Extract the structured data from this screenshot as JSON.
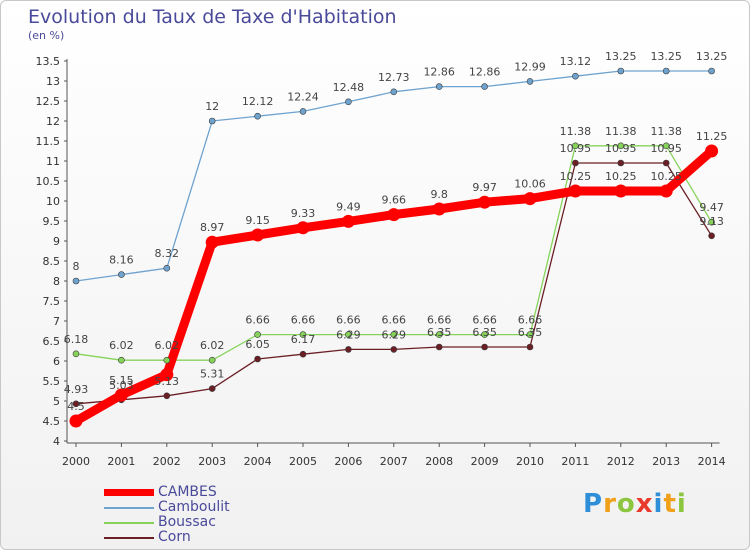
{
  "header": {
    "title": "Evolution du Taux de Taxe d'Habitation",
    "subtitle": "(en %)"
  },
  "logo": {
    "text": "Proxiti"
  },
  "chart_data": {
    "type": "line",
    "title": "Evolution du Taux de Taxe d'Habitation",
    "ylabel": "(en %)",
    "xlabel": "",
    "x": [
      "2000",
      "2001",
      "2002",
      "2003",
      "2004",
      "2005",
      "2006",
      "2007",
      "2008",
      "2009",
      "2010",
      "2011",
      "2012",
      "2013",
      "2014"
    ],
    "ylim": [
      4,
      13.5
    ],
    "yticks": [
      "4",
      "4.5",
      "5",
      "5.5",
      "6",
      "6.5",
      "7",
      "7.5",
      "8",
      "8.5",
      "9",
      "9.5",
      "10",
      "10.5",
      "11",
      "11.5",
      "12",
      "12.5",
      "13",
      "13.5"
    ],
    "grid": false,
    "legend_position": "bottom-left",
    "series": [
      {
        "name": "CAMBES",
        "color": "#ff0000",
        "values": [
          4.5,
          5.15,
          5.66,
          8.97,
          9.15,
          9.33,
          9.49,
          9.66,
          9.8,
          9.97,
          10.06,
          10.25,
          10.25,
          10.25,
          11.25
        ],
        "labels": [
          "4.5",
          "5.15",
          "",
          "8.97",
          "9.15",
          "9.33",
          "9.49",
          "9.66",
          "9.8",
          "9.97",
          "10.06",
          "10.25",
          "10.25",
          "10.25",
          "11.25"
        ]
      },
      {
        "name": "Camboulit",
        "color": "#6fa3cf",
        "values": [
          8,
          8.16,
          8.32,
          12,
          12.12,
          12.24,
          12.48,
          12.73,
          12.86,
          12.86,
          12.99,
          13.12,
          13.25,
          13.25,
          13.25
        ],
        "labels": [
          "8",
          "8.16",
          "8.32",
          "12",
          "12.12",
          "12.24",
          "12.48",
          "12.73",
          "12.86",
          "12.86",
          "12.99",
          "13.12",
          "13.25",
          "13.25",
          "13.25"
        ]
      },
      {
        "name": "Boussac",
        "color": "#86d35a",
        "values": [
          6.18,
          6.02,
          6.02,
          6.02,
          6.66,
          6.66,
          6.66,
          6.66,
          6.66,
          6.66,
          6.66,
          11.38,
          11.38,
          11.38,
          9.47
        ],
        "labels": [
          "6.18",
          "6.02",
          "6.02",
          "6.02",
          "6.66",
          "6.66",
          "6.66",
          "6.66",
          "6.66",
          "6.66",
          "6.66",
          "11.38",
          "11.38",
          "11.38",
          "9.47"
        ]
      },
      {
        "name": "Corn",
        "color": "#6b1f25",
        "values": [
          4.93,
          5.03,
          5.13,
          5.31,
          6.05,
          6.17,
          6.29,
          6.29,
          6.35,
          6.35,
          6.35,
          10.95,
          10.95,
          10.95,
          9.13
        ],
        "labels": [
          "4.93",
          "5.03",
          "5.13",
          "5.31",
          "6.05",
          "6.17",
          "6.29",
          "6.29",
          "6.35",
          "6.35",
          "6.35",
          "10.95",
          "10.95",
          "10.95",
          "9.13"
        ]
      }
    ]
  }
}
